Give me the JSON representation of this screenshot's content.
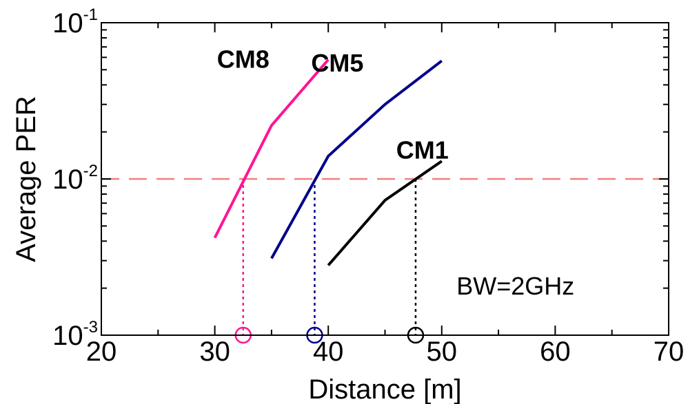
{
  "chart_data": {
    "type": "line",
    "title": "",
    "xlabel": "Distance [m]",
    "ylabel": "Average PER",
    "xlim": [
      20,
      70
    ],
    "ylim": [
      0.001,
      0.1
    ],
    "yscale": "log",
    "xticks": [
      20,
      30,
      40,
      50,
      60,
      70
    ],
    "yticks": [
      {
        "value": 0.001,
        "base": "10",
        "exp": "-3"
      },
      {
        "value": 0.01,
        "base": "10",
        "exp": "-2"
      },
      {
        "value": 0.1,
        "base": "10",
        "exp": "-1"
      }
    ],
    "grid": false,
    "legend": "none",
    "series": [
      {
        "name": "CM8",
        "color": "#ff1493",
        "x": [
          30,
          35,
          40
        ],
        "y": [
          0.0042,
          0.022,
          0.058
        ]
      },
      {
        "name": "CM5",
        "color": "#00008b",
        "x": [
          35,
          40,
          45,
          50
        ],
        "y": [
          0.0031,
          0.014,
          0.03,
          0.057
        ]
      },
      {
        "name": "CM1",
        "color": "#000000",
        "x": [
          40,
          45,
          50
        ],
        "y": [
          0.0028,
          0.0073,
          0.013
        ]
      }
    ],
    "reference_line": {
      "y": 0.01,
      "color": "#f08080",
      "style": "dashed"
    },
    "crossings": [
      {
        "series": "CM8",
        "x": 32.5,
        "color": "#ff1493"
      },
      {
        "series": "CM5",
        "x": 38.8,
        "color": "#00008b"
      },
      {
        "series": "CM1",
        "x": 47.7,
        "color": "#000000"
      }
    ],
    "series_labels": [
      {
        "text": "CM8",
        "x": 32.5,
        "y": 0.058
      },
      {
        "text": "CM5",
        "x": 40.8,
        "y": 0.055
      },
      {
        "text": "CM1",
        "x": 48.3,
        "y": 0.0152
      }
    ],
    "annotation": {
      "text": "BW=2GHz",
      "x": 56.5,
      "y": 0.00205
    }
  }
}
